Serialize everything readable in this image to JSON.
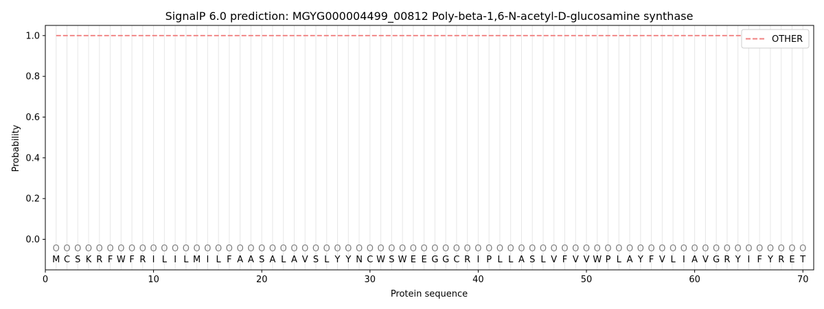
{
  "chart_data": {
    "type": "line",
    "title": "SignalP 6.0 prediction: MGYG000004499_00812 Poly-beta-1,6-N-acetyl-D-glucosamine synthase",
    "xlabel": "Protein sequence",
    "ylabel": "Probability",
    "xlim": [
      0,
      71
    ],
    "ylim": [
      -0.15,
      1.05
    ],
    "xticks": [
      0,
      10,
      20,
      30,
      40,
      50,
      60,
      70
    ],
    "yticks": [
      0.0,
      0.2,
      0.4,
      0.6,
      0.8,
      1.0
    ],
    "ytick_labels": [
      "0.0",
      "0.2",
      "0.4",
      "0.6",
      "0.8",
      "1.0"
    ],
    "grid": "vertical lines at each residue",
    "legend_position": "top-right",
    "sequence": [
      "M",
      "C",
      "S",
      "K",
      "R",
      "F",
      "W",
      "F",
      "R",
      "I",
      "L",
      "I",
      "L",
      "M",
      "I",
      "L",
      "F",
      "A",
      "A",
      "S",
      "A",
      "L",
      "A",
      "V",
      "S",
      "L",
      "Y",
      "Y",
      "N",
      "C",
      "W",
      "S",
      "W",
      "E",
      "E",
      "G",
      "G",
      "C",
      "R",
      "I",
      "P",
      "L",
      "L",
      "A",
      "S",
      "L",
      "V",
      "F",
      "V",
      "V",
      "W",
      "P",
      "L",
      "A",
      "Y",
      "F",
      "V",
      "L",
      "I",
      "A",
      "V",
      "G",
      "R",
      "Y",
      "I",
      "F",
      "Y",
      "R",
      "E",
      "T"
    ],
    "predicted_states": [
      "O",
      "O",
      "O",
      "O",
      "O",
      "O",
      "O",
      "O",
      "O",
      "O",
      "O",
      "O",
      "O",
      "O",
      "O",
      "O",
      "O",
      "O",
      "O",
      "O",
      "O",
      "O",
      "O",
      "O",
      "O",
      "O",
      "O",
      "O",
      "O",
      "O",
      "O",
      "O",
      "O",
      "O",
      "O",
      "O",
      "O",
      "O",
      "O",
      "O",
      "O",
      "O",
      "O",
      "O",
      "O",
      "O",
      "O",
      "O",
      "O",
      "O",
      "O",
      "O",
      "O",
      "O",
      "O",
      "O",
      "O",
      "O",
      "O",
      "O",
      "O",
      "O",
      "O",
      "O",
      "O",
      "O",
      "O",
      "O",
      "O",
      "O"
    ],
    "series": [
      {
        "name": "OTHER",
        "color": "#f08080",
        "style": "dashed",
        "x_start": 1,
        "x_end": 70,
        "value": 1.0
      }
    ]
  }
}
